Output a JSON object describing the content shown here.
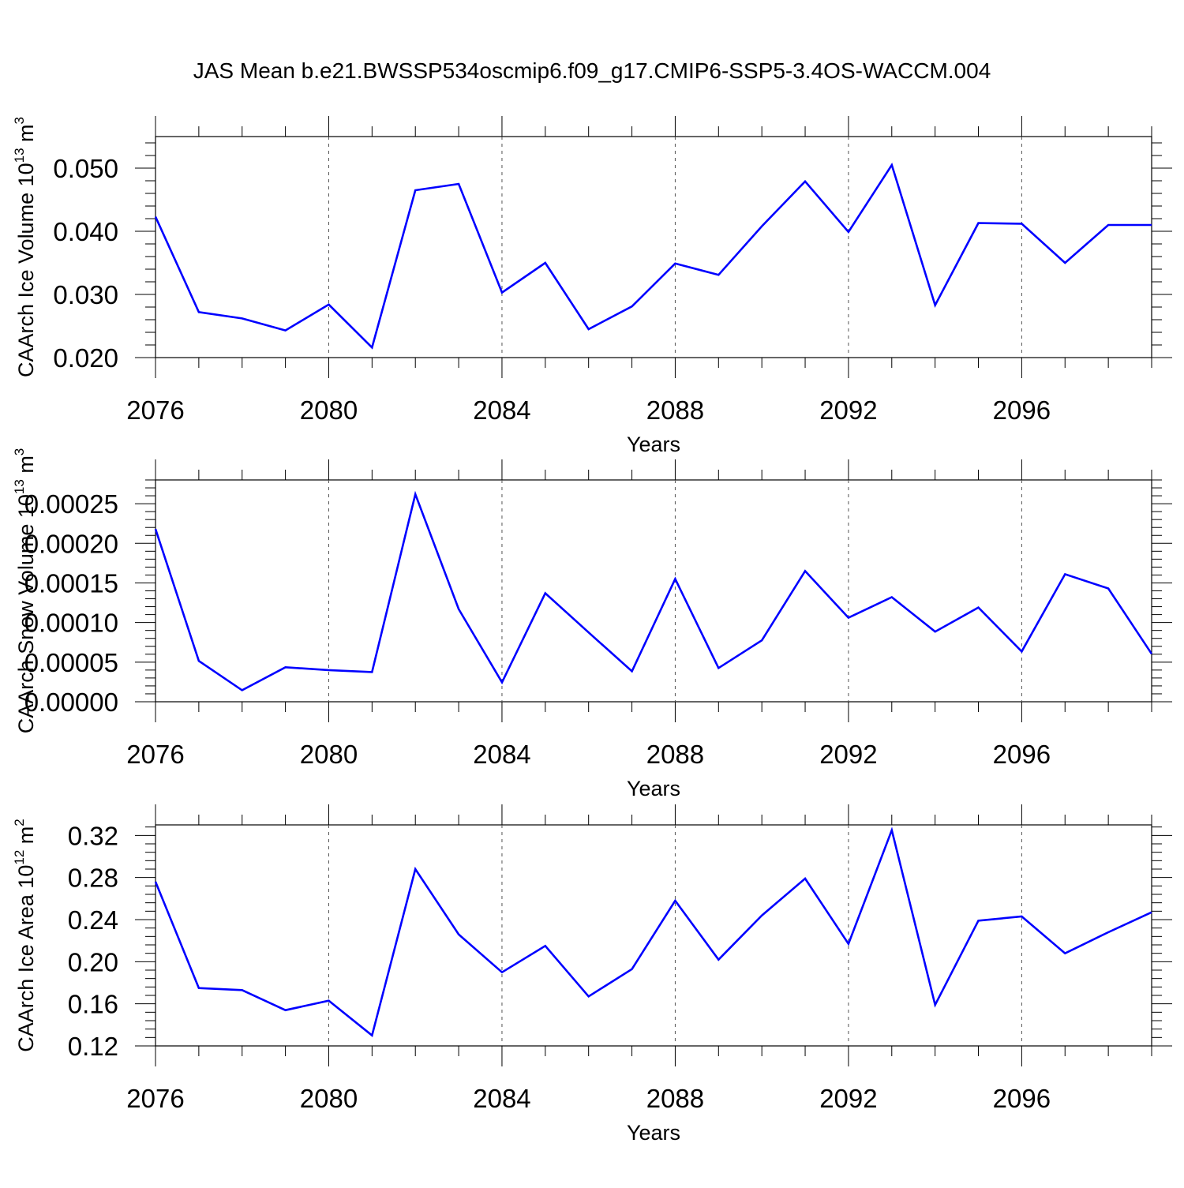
{
  "chart_data": {
    "title": "JAS Mean b.e21.BWSSP534oscmip6.f09_g17.CMIP6-SSP5-3.4OS-WACCM.004",
    "line_color": "#0000ff",
    "grid_x": true,
    "panels": [
      {
        "type": "line",
        "ylabel": "CAArch Ice Volume 10",
        "ylabel_exp": "13",
        "ylabel_unit": " m",
        "ylabel_unit_exp": "3",
        "xlabel": "Years",
        "xlim": [
          2076,
          2099
        ],
        "ylim": [
          0.02,
          0.055
        ],
        "yticks": [
          0.02,
          0.03,
          0.04,
          0.05
        ],
        "ytick_labels": [
          "0.020",
          "0.030",
          "0.040",
          "0.050"
        ],
        "xticks": [
          2076,
          2080,
          2084,
          2088,
          2092,
          2096
        ],
        "xtick_labels": [
          "2076",
          "2080",
          "2084",
          "2088",
          "2092",
          "2096"
        ],
        "x": [
          2076,
          2077,
          2078,
          2079,
          2080,
          2081,
          2082,
          2083,
          2084,
          2085,
          2086,
          2087,
          2088,
          2089,
          2090,
          2091,
          2092,
          2093,
          2094,
          2095,
          2096,
          2097,
          2098,
          2099
        ],
        "values": [
          0.0423,
          0.0272,
          0.0262,
          0.0243,
          0.0284,
          0.0216,
          0.0465,
          0.0475,
          0.0303,
          0.035,
          0.0245,
          0.0281,
          0.0349,
          0.0331,
          0.0408,
          0.0479,
          0.0399,
          0.0505,
          0.0283,
          0.0413,
          0.0412,
          0.035,
          0.041,
          0.041
        ]
      },
      {
        "type": "line",
        "ylabel": "CAArch Snow Volume 10",
        "ylabel_exp": "13",
        "ylabel_unit": " m",
        "ylabel_unit_exp": "3",
        "xlabel": "Years",
        "xlim": [
          2076,
          2099
        ],
        "ylim": [
          0,
          0.00028
        ],
        "yticks": [
          0,
          5e-05,
          0.0001,
          0.00015,
          0.0002,
          0.00025
        ],
        "ytick_labels": [
          "0.00000",
          "0.00005",
          "0.00010",
          "0.00015",
          "0.00020",
          "0.00025"
        ],
        "xticks": [
          2076,
          2080,
          2084,
          2088,
          2092,
          2096
        ],
        "xtick_labels": [
          "2076",
          "2080",
          "2084",
          "2088",
          "2092",
          "2096"
        ],
        "x": [
          2076,
          2077,
          2078,
          2079,
          2080,
          2081,
          2082,
          2083,
          2084,
          2085,
          2086,
          2087,
          2088,
          2089,
          2090,
          2091,
          2092,
          2093,
          2094,
          2095,
          2096,
          2097,
          2098,
          2099
        ],
        "values": [
          0.000218,
          5.15e-05,
          1.45e-05,
          4.35e-05,
          4e-05,
          3.75e-05,
          0.000262,
          0.000117,
          2.45e-05,
          0.000137,
          8.75e-05,
          3.85e-05,
          0.000155,
          4.25e-05,
          7.75e-05,
          0.000165,
          0.000106,
          0.000132,
          8.85e-05,
          0.000119,
          6.35e-05,
          0.000161,
          0.000143,
          6.05e-05
        ]
      },
      {
        "type": "line",
        "ylabel": "CAArch Ice Area 10",
        "ylabel_exp": "12",
        "ylabel_unit": " m",
        "ylabel_unit_exp": "2",
        "xlabel": "Years",
        "xlim": [
          2076,
          2099
        ],
        "ylim": [
          0.12,
          0.33
        ],
        "yticks": [
          0.12,
          0.16,
          0.2,
          0.24,
          0.28,
          0.32
        ],
        "ytick_labels": [
          "0.12",
          "0.16",
          "0.20",
          "0.24",
          "0.28",
          "0.32"
        ],
        "xticks": [
          2076,
          2080,
          2084,
          2088,
          2092,
          2096
        ],
        "xtick_labels": [
          "2076",
          "2080",
          "2084",
          "2088",
          "2092",
          "2096"
        ],
        "x": [
          2076,
          2077,
          2078,
          2079,
          2080,
          2081,
          2082,
          2083,
          2084,
          2085,
          2086,
          2087,
          2088,
          2089,
          2090,
          2091,
          2092,
          2093,
          2094,
          2095,
          2096,
          2097,
          2098,
          2099
        ],
        "values": [
          0.276,
          0.175,
          0.173,
          0.154,
          0.163,
          0.13,
          0.288,
          0.226,
          0.19,
          0.215,
          0.167,
          0.193,
          0.258,
          0.202,
          0.244,
          0.279,
          0.217,
          0.325,
          0.159,
          0.239,
          0.243,
          0.208,
          0.228,
          0.247
        ]
      }
    ]
  }
}
